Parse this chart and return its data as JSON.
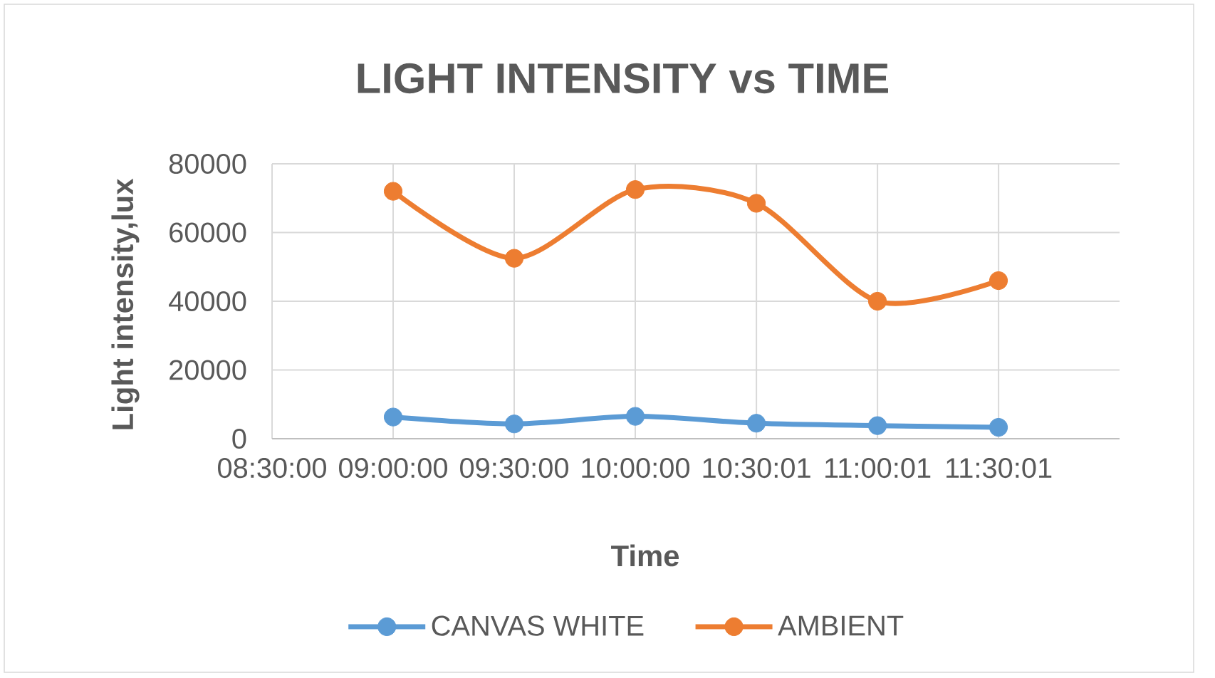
{
  "chart_data": {
    "type": "line",
    "title": "LIGHT INTENSITY vs TIME",
    "xlabel": "Time",
    "ylabel": "Light intensity,lux",
    "x": [
      9,
      9.5,
      10,
      10.5,
      11,
      11.5
    ],
    "series": [
      {
        "name": "CANVAS WHITE",
        "color": "#5b9bd5",
        "values": [
          6300,
          4300,
          6500,
          4500,
          3800,
          3300
        ]
      },
      {
        "name": "AMBIENT",
        "color": "#ed7d31",
        "values": [
          72000,
          52500,
          72500,
          68500,
          40000,
          46000
        ]
      }
    ],
    "xlim": [
      8.5,
      12
    ],
    "xticks": [
      {
        "value": 8.5,
        "label": "08:30:00"
      },
      {
        "value": 9,
        "label": "09:00:00"
      },
      {
        "value": 9.5,
        "label": "09:30:00"
      },
      {
        "value": 10,
        "label": "10:00:00"
      },
      {
        "value": 10.5002778,
        "label": "10:30:01"
      },
      {
        "value": 11.0002778,
        "label": "11:00:01"
      },
      {
        "value": 11.5002778,
        "label": "11:30:01"
      }
    ],
    "ylim": [
      0,
      80000
    ],
    "yticks": [
      0,
      20000,
      40000,
      60000,
      80000
    ],
    "grid": true,
    "legend": "bottom",
    "marker": "circle",
    "line_style": "solid"
  }
}
